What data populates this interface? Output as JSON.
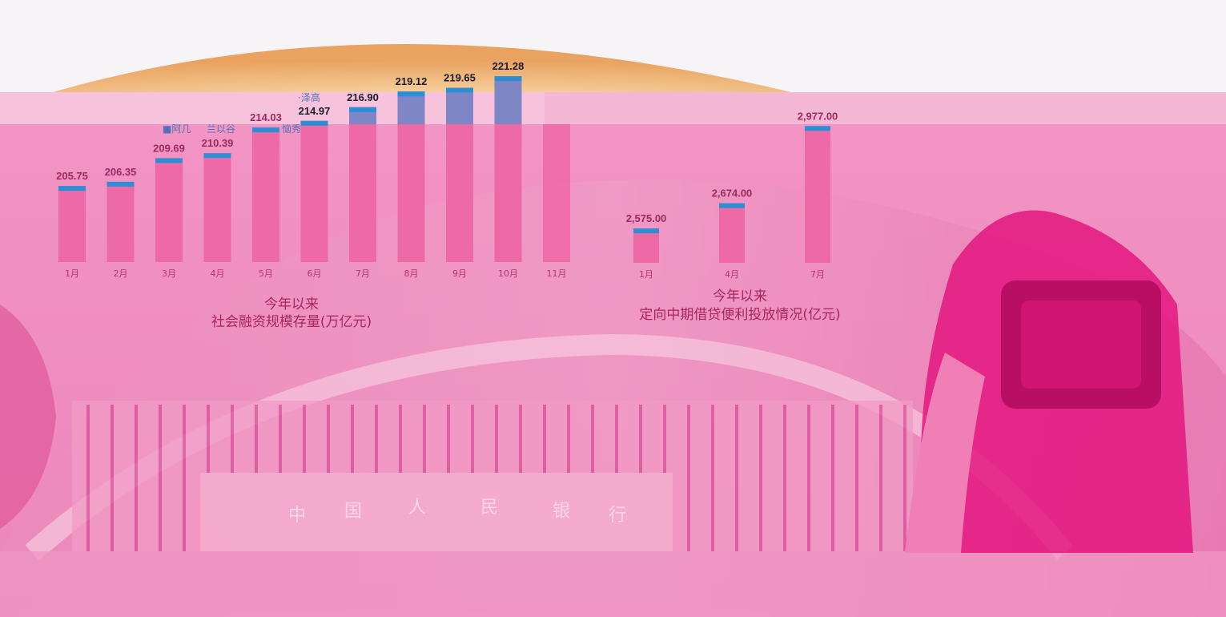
{
  "chart_data": [
    {
      "type": "bar",
      "title": "今年以来",
      "subtitle": "社会融资规模存量(万亿元)",
      "categories": [
        "1月",
        "2月",
        "3月",
        "4月",
        "5月",
        "6月",
        "7月",
        "8月",
        "9月",
        "10月",
        "11月"
      ],
      "values": [
        205.75,
        206.35,
        209.69,
        210.39,
        214.03,
        214.97,
        216.9,
        219.12,
        219.65,
        221.28,
        null
      ],
      "value_labels": [
        "205.75",
        "206.35",
        "209.69",
        "210.39",
        "214.03",
        "214.97",
        "216.90",
        "219.12",
        "219.65",
        "221.28",
        ""
      ],
      "ylim": [
        195,
        223
      ],
      "colors": {
        "bar": "#ee6aa7",
        "bar_top": "#7f86c6",
        "bar_cap": "#2b8fd6"
      },
      "legend": [
        "■阿几",
        "兰以谷",
        "恼秀"
      ],
      "legend_colors": [
        "#4f73b8",
        "#2b8fd6",
        "#ee6aa7"
      ],
      "annotation": "·泽高"
    },
    {
      "type": "bar",
      "title": "今年以来",
      "subtitle": "定向中期借贷便利投放情况(亿元)",
      "categories": [
        "1月",
        "4月",
        "7月"
      ],
      "values": [
        2575.0,
        2674.0,
        2977.0
      ],
      "value_labels": [
        "2,575.00",
        "2,674.00",
        "2,977.00"
      ],
      "ylim": [
        2440,
        3000
      ],
      "colors": {
        "bar": "#ee6aa7",
        "bar_cap": "#2b8fd6"
      }
    }
  ],
  "background": {
    "building_sign": [
      "中",
      "国",
      "人",
      "民",
      "银",
      "行"
    ],
    "colors": {
      "tint": "#ef8ec0",
      "dome": "#efb47e",
      "deep": "#e3167f"
    }
  }
}
